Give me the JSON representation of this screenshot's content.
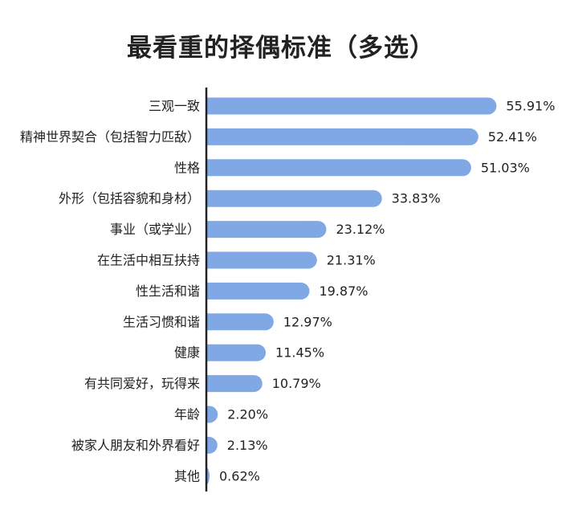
{
  "chart_data": {
    "type": "bar",
    "orientation": "horizontal",
    "title": "最看重的择偶标准（多选）",
    "categories": [
      "三观一致",
      "精神世界契合（包括智力匹敌）",
      "性格",
      "外形（包括容貌和身材）",
      "事业（或学业）",
      "在生活中相互扶持",
      "性生活和谐",
      "生活习惯和谐",
      "健康",
      "有共同爱好，玩得来",
      "年龄",
      "被家人朋友和外界看好",
      "其他"
    ],
    "values": [
      55.91,
      52.41,
      51.03,
      33.83,
      23.12,
      21.31,
      19.87,
      12.97,
      11.45,
      10.79,
      2.2,
      2.13,
      0.62
    ],
    "value_labels": [
      "55.91%",
      "52.41%",
      "51.03%",
      "33.83%",
      "23.12%",
      "21.31%",
      "19.87%",
      "12.97%",
      "11.45%",
      "10.79%",
      "2.20%",
      "2.13%",
      "0.62%"
    ],
    "xlim": [
      0,
      56
    ],
    "bar_color": "#7fa8e4",
    "axis_color": "#222222",
    "grid": false,
    "legend": false
  }
}
